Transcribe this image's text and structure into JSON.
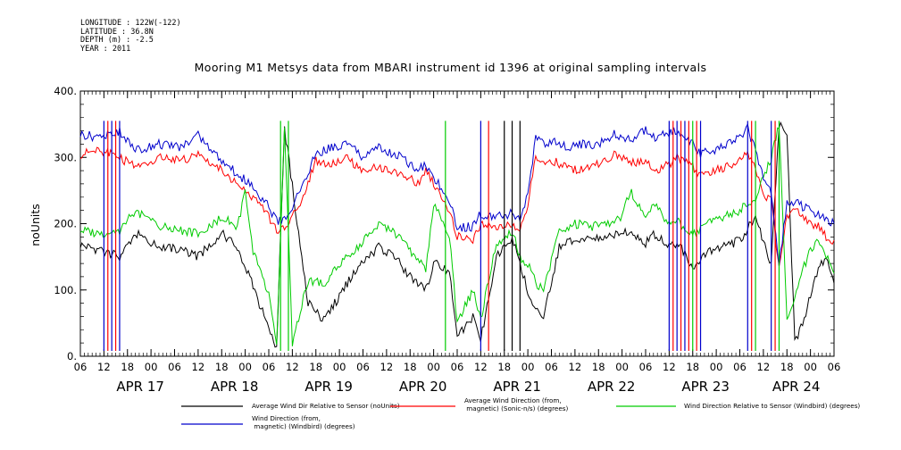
{
  "metadata_lines": [
    "LONGITUDE : 122W(-122)",
    "LATITUDE : 36.8N",
    "DEPTH (m) : -2.5",
    "YEAR : 2011"
  ],
  "chart_data": {
    "type": "line",
    "title": "Mooring M1 Metsys data from MBARI instrument id 1396 at original sampling intervals",
    "ylabel": "noUnits",
    "xlabel": "",
    "ylim": [
      0,
      400
    ],
    "yticks": [
      "0.",
      "100.",
      "200.",
      "300.",
      "400."
    ],
    "xlim_hours": [
      0,
      192
    ],
    "hour_tick_labels": [
      "06",
      "12",
      "18",
      "00",
      "06",
      "12",
      "18",
      "00",
      "06",
      "12",
      "18",
      "00",
      "06",
      "12",
      "18",
      "00",
      "06",
      "12",
      "18",
      "00",
      "06",
      "12",
      "18",
      "00",
      "06",
      "12",
      "18",
      "00",
      "06",
      "12",
      "18",
      "00",
      "06"
    ],
    "date_labels": [
      "APR 17",
      "APR 18",
      "APR 19",
      "APR 20",
      "APR 21",
      "APR 22",
      "APR 23",
      "APR 24"
    ],
    "grid": false,
    "legend_position": "bottom",
    "series": [
      {
        "name": "Average Wind Dir Relative to Sensor (noUnits)",
        "color": "#000000",
        "x": [
          0,
          5,
          10,
          14,
          20,
          26,
          30,
          36,
          40,
          44,
          48,
          50,
          52,
          58,
          62,
          66,
          70,
          76,
          80,
          84,
          88,
          90,
          94,
          96,
          100,
          102,
          106,
          110,
          112,
          114,
          116,
          118,
          122,
          126,
          130,
          134,
          138,
          140,
          144,
          146,
          150,
          152,
          154,
          156,
          160,
          164,
          168,
          172,
          176,
          178,
          180,
          182,
          184,
          186,
          188,
          190,
          192
        ],
        "y": [
          168,
          160,
          150,
          185,
          165,
          160,
          150,
          185,
          165,
          105,
          40,
          15,
          345,
          80,
          55,
          90,
          130,
          165,
          150,
          120,
          100,
          140,
          130,
          30,
          60,
          25,
          150,
          180,
          140,
          100,
          70,
          60,
          165,
          175,
          175,
          180,
          185,
          190,
          170,
          185,
          165,
          170,
          155,
          135,
          160,
          165,
          175,
          210,
          140,
          350,
          340,
          20,
          50,
          90,
          135,
          145,
          110
        ]
      },
      {
        "name": "Average Wind Direction (from, magnetic) (Sonic-n/s) (degrees)",
        "color": "#ff0000",
        "x": [
          0,
          5,
          10,
          14,
          20,
          26,
          30,
          36,
          40,
          44,
          48,
          50,
          52,
          56,
          60,
          64,
          68,
          72,
          76,
          82,
          86,
          88,
          90,
          94,
          96,
          100,
          102,
          106,
          110,
          112,
          114,
          116,
          118,
          120,
          124,
          128,
          132,
          136,
          140,
          144,
          146,
          150,
          152,
          154,
          156,
          158,
          160,
          164,
          168,
          170,
          172,
          174,
          176,
          178,
          180,
          182,
          184,
          186,
          188,
          190,
          192
        ],
        "y": [
          305,
          310,
          300,
          285,
          300,
          295,
          305,
          280,
          260,
          240,
          210,
          190,
          190,
          230,
          295,
          290,
          300,
          280,
          285,
          275,
          260,
          280,
          260,
          220,
          180,
          175,
          200,
          190,
          200,
          190,
          230,
          300,
          290,
          295,
          285,
          280,
          290,
          305,
          290,
          295,
          280,
          290,
          300,
          295,
          285,
          270,
          275,
          285,
          295,
          310,
          280,
          245,
          235,
          130,
          210,
          220,
          210,
          200,
          195,
          180,
          175
        ]
      },
      {
        "name": "Wind Direction Relative to Sensor (Windbird) (degrees)",
        "color": "#00cc00",
        "x": [
          0,
          5,
          10,
          14,
          20,
          26,
          30,
          36,
          40,
          42,
          44,
          48,
          50,
          52,
          54,
          58,
          62,
          66,
          70,
          76,
          80,
          84,
          88,
          90,
          94,
          96,
          100,
          102,
          106,
          110,
          112,
          114,
          116,
          118,
          122,
          126,
          130,
          134,
          138,
          140,
          144,
          146,
          150,
          152,
          154,
          156,
          160,
          164,
          168,
          172,
          176,
          178,
          180,
          182,
          184,
          186,
          188,
          190,
          192
        ],
        "y": [
          190,
          185,
          190,
          220,
          195,
          190,
          185,
          210,
          195,
          250,
          160,
          90,
          20,
          350,
          20,
          115,
          110,
          140,
          160,
          200,
          185,
          160,
          130,
          230,
          185,
          50,
          100,
          55,
          170,
          190,
          150,
          140,
          110,
          100,
          190,
          200,
          195,
          200,
          210,
          250,
          205,
          230,
          200,
          205,
          190,
          185,
          200,
          210,
          220,
          240,
          300,
          350,
          50,
          90,
          130,
          160,
          175,
          150,
          125
        ]
      },
      {
        "name": "Wind Direction (from, magnetic) (Windbird) (degrees)",
        "color": "#0000cc",
        "x": [
          0,
          5,
          10,
          14,
          20,
          26,
          30,
          36,
          40,
          44,
          48,
          50,
          52,
          56,
          60,
          64,
          68,
          72,
          76,
          82,
          86,
          88,
          90,
          94,
          96,
          100,
          102,
          106,
          110,
          112,
          114,
          116,
          118,
          120,
          124,
          128,
          132,
          136,
          140,
          144,
          146,
          150,
          152,
          154,
          156,
          158,
          160,
          164,
          168,
          170,
          172,
          174,
          176,
          178,
          180,
          182,
          184,
          186,
          188,
          190,
          192
        ],
        "y": [
          335,
          330,
          340,
          310,
          320,
          315,
          335,
          295,
          275,
          255,
          225,
          205,
          205,
          250,
          305,
          315,
          320,
          300,
          315,
          300,
          280,
          290,
          270,
          235,
          195,
          195,
          215,
          210,
          215,
          205,
          245,
          330,
          320,
          325,
          315,
          320,
          320,
          335,
          325,
          340,
          330,
          335,
          340,
          330,
          320,
          305,
          310,
          315,
          330,
          345,
          310,
          270,
          250,
          140,
          230,
          235,
          225,
          220,
          215,
          205,
          200
        ]
      }
    ],
    "spike_hours": {
      "black": [
        108,
        110,
        112
      ],
      "blue": [
        6,
        8,
        10,
        102,
        150,
        152,
        154,
        158,
        170,
        176
      ],
      "red": [
        7,
        9,
        104,
        151,
        153,
        155,
        157,
        171,
        177
      ],
      "green": [
        51,
        53,
        93,
        156,
        172,
        178
      ]
    }
  }
}
